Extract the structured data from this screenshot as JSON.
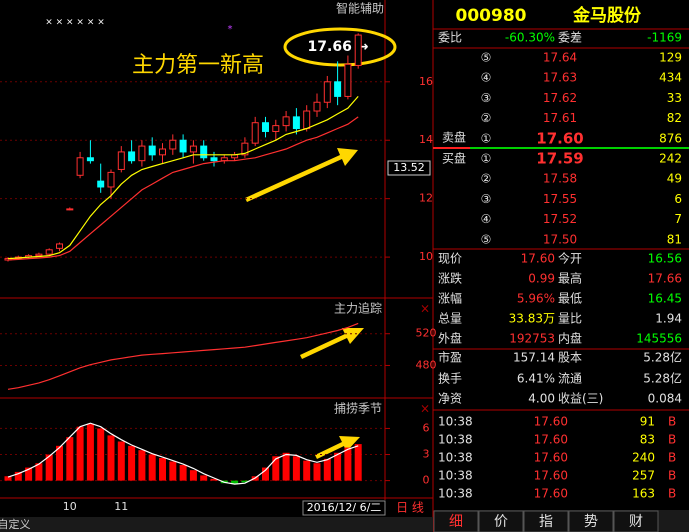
{
  "chart_data": [
    {
      "type": "candlestick",
      "title": "智能辅助",
      "annotation": "主力第一新高",
      "high_label": "17.66 →",
      "top_markers": "× × × × × ×",
      "star_marker": "*",
      "price_tag": "13.52",
      "categories": [
        null,
        null,
        null,
        null,
        null,
        null,
        "10",
        null,
        null,
        null,
        null,
        "11",
        null,
        null,
        null,
        null,
        null,
        null,
        null,
        null,
        null,
        null,
        null,
        null,
        null,
        null,
        null,
        null,
        null,
        null,
        null,
        null,
        null,
        null,
        null
      ],
      "open": [
        9.9,
        9.95,
        10.0,
        10.05,
        10.1,
        10.3,
        11.65,
        12.8,
        13.4,
        12.6,
        12.4,
        13.0,
        13.6,
        13.3,
        13.8,
        13.5,
        13.7,
        14.0,
        13.6,
        13.8,
        13.4,
        13.3,
        13.4,
        13.5,
        13.9,
        14.6,
        14.3,
        14.5,
        14.8,
        14.4,
        15.0,
        15.3,
        16.0,
        15.5,
        16.56
      ],
      "high": [
        10.0,
        10.05,
        10.1,
        10.15,
        10.3,
        10.5,
        11.7,
        13.6,
        14.0,
        13.2,
        13.0,
        13.8,
        14.0,
        14.0,
        14.1,
        13.9,
        14.2,
        14.2,
        14.0,
        14.0,
        13.6,
        13.5,
        13.6,
        14.1,
        14.8,
        14.8,
        14.7,
        15.0,
        15.1,
        15.2,
        15.6,
        16.2,
        16.7,
        16.9,
        17.66
      ],
      "low": [
        9.85,
        9.9,
        9.95,
        10.0,
        10.05,
        10.2,
        11.6,
        12.7,
        13.2,
        12.2,
        12.0,
        12.9,
        13.2,
        13.1,
        13.3,
        13.2,
        13.5,
        13.4,
        13.2,
        13.3,
        13.1,
        13.2,
        13.3,
        13.4,
        13.8,
        14.1,
        14.0,
        14.3,
        14.2,
        14.3,
        14.8,
        15.1,
        15.2,
        15.4,
        16.45
      ],
      "close": [
        9.95,
        10.0,
        10.05,
        10.1,
        10.25,
        10.45,
        11.65,
        13.4,
        13.3,
        12.4,
        12.9,
        13.6,
        13.3,
        13.8,
        13.5,
        13.7,
        14.0,
        13.6,
        13.8,
        13.4,
        13.3,
        13.4,
        13.5,
        13.9,
        14.6,
        14.3,
        14.5,
        14.8,
        14.4,
        15.0,
        15.3,
        16.0,
        15.5,
        16.6,
        17.6
      ],
      "series": [
        {
          "color": "#ffff00",
          "values": [
            9.95,
            9.97,
            10.0,
            10.02,
            10.05,
            10.15,
            10.4,
            10.9,
            11.4,
            11.8,
            12.1,
            12.5,
            12.8,
            13.0,
            13.1,
            13.2,
            13.3,
            13.4,
            13.5,
            13.5,
            13.5,
            13.5,
            13.5,
            13.55,
            13.7,
            13.85,
            14.0,
            14.2,
            14.3,
            14.4,
            14.55,
            14.7,
            14.9,
            15.1,
            15.5
          ]
        },
        {
          "color": "#ff3030",
          "values": [
            9.9,
            9.92,
            9.95,
            9.97,
            10.0,
            10.05,
            10.2,
            10.5,
            10.8,
            11.1,
            11.4,
            11.7,
            12.0,
            12.3,
            12.5,
            12.7,
            12.9,
            13.0,
            13.1,
            13.2,
            13.25,
            13.3,
            13.3,
            13.35,
            13.4,
            13.5,
            13.6,
            13.7,
            13.85,
            14.0,
            14.1,
            14.25,
            14.4,
            14.55,
            14.8
          ]
        }
      ],
      "ylim": [
        8.6,
        18.8
      ],
      "yticks": [
        10,
        12,
        14,
        16
      ]
    },
    {
      "type": "line",
      "title": "主力追踪",
      "color": "#ff3030",
      "values": [
        450,
        452,
        455,
        458,
        462,
        467,
        472,
        477,
        481,
        484,
        487,
        489,
        491,
        493,
        494,
        495,
        496,
        497,
        498,
        499,
        500,
        501,
        502,
        503,
        505,
        507,
        509,
        511,
        513,
        515,
        518,
        521,
        524,
        528,
        533
      ],
      "ylim": [
        439,
        565
      ],
      "yticks": [
        480,
        520
      ]
    },
    {
      "type": "bar",
      "title": "捕捞季节",
      "color": "#ff0000",
      "line_color": "#ffffff",
      "values": [
        0.5,
        1,
        1.5,
        2,
        3,
        4,
        5,
        6.2,
        6.5,
        6,
        5.2,
        4.5,
        4,
        3.5,
        3,
        2.6,
        2.2,
        1.8,
        1.2,
        0.6,
        0.2,
        -0.3,
        -0.4,
        -0.2,
        0.5,
        1.5,
        2.8,
        3.2,
        2.8,
        2.3,
        2.0,
        2.5,
        3.2,
        3.8,
        4.2
      ],
      "line": [
        0.4,
        0.8,
        1.3,
        1.9,
        2.8,
        3.8,
        5.0,
        6.2,
        6.6,
        6.2,
        5.4,
        4.7,
        4.1,
        3.6,
        3.1,
        2.7,
        2.3,
        1.9,
        1.4,
        0.8,
        0.3,
        -0.2,
        -0.4,
        -0.3,
        0.3,
        1.2,
        2.5,
        3.0,
        2.9,
        2.4,
        2.1,
        2.4,
        3.0,
        3.6,
        4.0
      ],
      "ylim": [
        -2,
        9.5
      ],
      "yticks": [
        0,
        3,
        6
      ]
    }
  ],
  "status_bar": {
    "date": "2016/12/ 6/二",
    "period": "日 线",
    "custom": "自定义"
  },
  "quote_panel": {
    "code": "000980",
    "name": "金马股份",
    "order_ratio": [
      "委比",
      "-60.30%",
      "委差",
      "-1169"
    ],
    "sell_label": "卖盘",
    "buy_label": "买盘",
    "asks": [
      [
        "⑤",
        "17.64",
        "129"
      ],
      [
        "④",
        "17.63",
        "434"
      ],
      [
        "③",
        "17.62",
        "33"
      ],
      [
        "②",
        "17.61",
        "82"
      ],
      [
        "①",
        "17.60",
        "876"
      ]
    ],
    "bids": [
      [
        "①",
        "17.59",
        "242"
      ],
      [
        "②",
        "17.58",
        "49"
      ],
      [
        "③",
        "17.55",
        "6"
      ],
      [
        "④",
        "17.52",
        "7"
      ],
      [
        "⑤",
        "17.50",
        "81"
      ]
    ],
    "stats": [
      [
        "现价",
        "17.60",
        "今开",
        "16.56"
      ],
      [
        "涨跌",
        "0.99",
        "最高",
        "17.66"
      ],
      [
        "涨幅",
        "5.96%",
        "最低",
        "16.45"
      ],
      [
        "总量",
        "33.83万",
        "量比",
        "1.94"
      ],
      [
        "外盘",
        "192753",
        "内盘",
        "145556"
      ],
      [
        "市盈",
        "157.14",
        "股本",
        "5.28亿"
      ],
      [
        "换手",
        "6.41%",
        "流通",
        "5.28亿"
      ],
      [
        "净资",
        "4.00",
        "收益(三)",
        "0.084"
      ]
    ],
    "trades": [
      [
        "10:38",
        "17.60",
        "91",
        "B"
      ],
      [
        "10:38",
        "17.60",
        "83",
        "B"
      ],
      [
        "10:38",
        "17.60",
        "240",
        "B"
      ],
      [
        "10:38",
        "17.60",
        "257",
        "B"
      ],
      [
        "10:38",
        "17.60",
        "163",
        "B"
      ]
    ],
    "tabs": [
      "细",
      "价",
      "指",
      "势",
      "财"
    ]
  }
}
